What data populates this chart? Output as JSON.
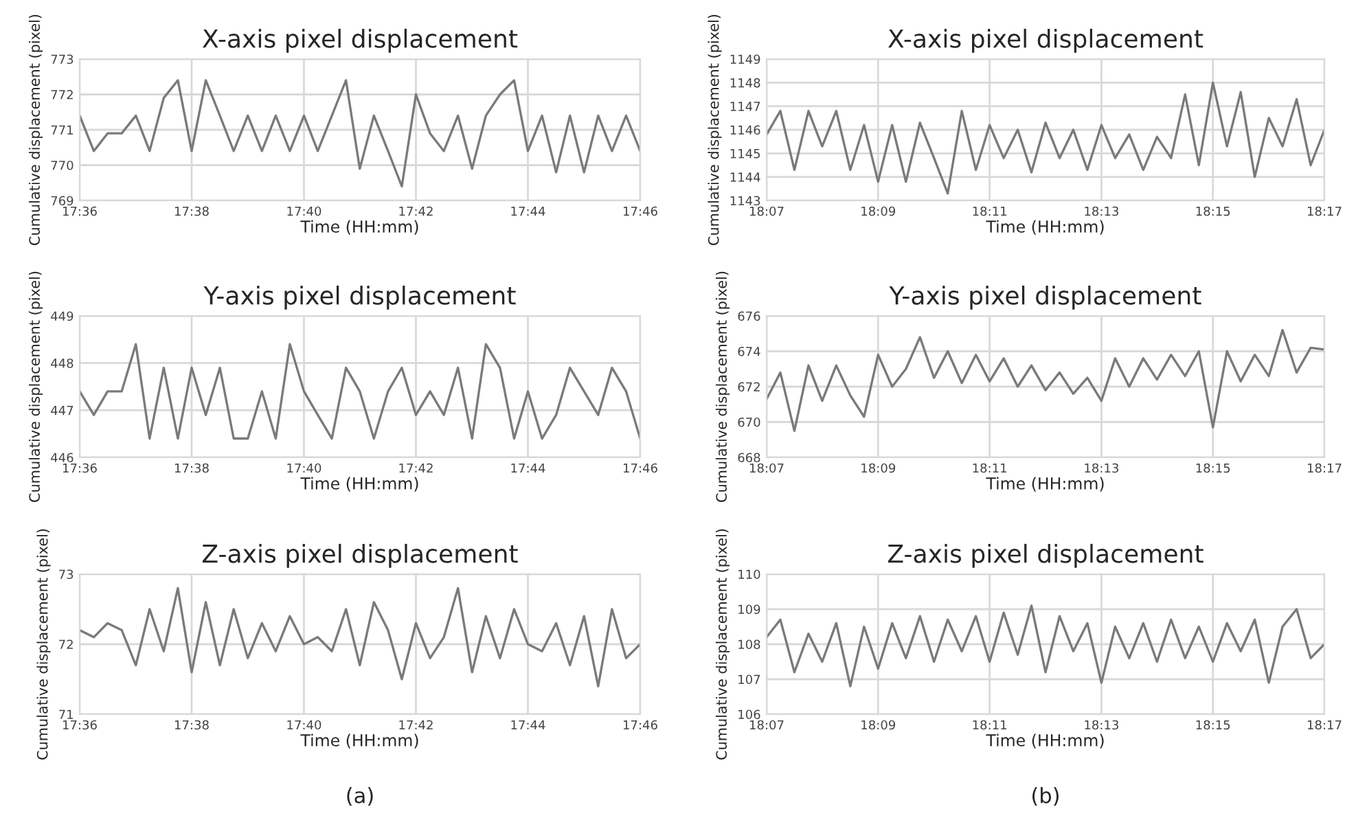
{
  "chart_data": [
    {
      "type": "line",
      "title": "X-axis pixel displacement",
      "xlabel": "Time (HH:mm)",
      "ylabel": "Cumulative displacement (pixel)",
      "grid": true,
      "x": [
        17.6,
        17.6042,
        17.6083,
        17.6125,
        17.6167,
        17.6208,
        17.625,
        17.6292,
        17.6333,
        17.6375,
        17.6417,
        17.6458,
        17.65,
        17.6542,
        17.6583,
        17.6625,
        17.6667,
        17.6708,
        17.675,
        17.6792,
        17.6833,
        17.6875,
        17.6917,
        17.6958,
        17.7,
        17.7042,
        17.7083,
        17.7125,
        17.7167,
        17.7208,
        17.725,
        17.7292,
        17.7333,
        17.7375,
        17.7417,
        17.7458,
        17.75,
        17.7542,
        17.7583,
        17.7625,
        17.7667
      ],
      "xlim": [
        17.6,
        17.7667
      ],
      "xticks": [
        {
          "value": 17.6,
          "label": "17:36"
        },
        {
          "value": 17.6333,
          "label": "17:38"
        },
        {
          "value": 17.6667,
          "label": "17:40"
        },
        {
          "value": 17.7,
          "label": "17:42"
        },
        {
          "value": 17.7333,
          "label": "17:44"
        },
        {
          "value": 17.7667,
          "label": "17:46"
        }
      ],
      "ylim": [
        769,
        773
      ],
      "yticks": [
        769,
        770,
        771,
        772,
        773
      ],
      "series": [
        {
          "color": "#7a7a7a",
          "values": [
            771.4,
            770.4,
            770.9,
            770.9,
            771.4,
            770.4,
            771.9,
            772.4,
            770.4,
            772.4,
            771.4,
            770.4,
            771.4,
            770.4,
            771.4,
            770.4,
            771.4,
            770.4,
            771.4,
            772.4,
            769.9,
            771.4,
            770.4,
            769.4,
            772.0,
            770.9,
            770.4,
            771.4,
            769.9,
            771.4,
            772.0,
            772.4,
            770.4,
            771.4,
            769.8,
            771.4,
            769.8,
            771.4,
            770.4,
            771.4,
            770.4
          ]
        }
      ]
    },
    {
      "type": "line",
      "title": "X-axis pixel displacement",
      "xlabel": "Time (HH:mm)",
      "ylabel": "Cumulative displacement (pixel)",
      "grid": true,
      "x": [
        18.1167,
        18.1208,
        18.125,
        18.1292,
        18.1333,
        18.1375,
        18.1417,
        18.1458,
        18.15,
        18.1542,
        18.1583,
        18.1625,
        18.1667,
        18.1708,
        18.175,
        18.1792,
        18.1833,
        18.1875,
        18.1917,
        18.1958,
        18.2,
        18.2042,
        18.2083,
        18.2125,
        18.2167,
        18.2208,
        18.225,
        18.2292,
        18.2333,
        18.2375,
        18.2417,
        18.2458,
        18.25,
        18.2542,
        18.2583,
        18.2625,
        18.2667,
        18.2708,
        18.275,
        18.2792,
        18.2833
      ],
      "xlim": [
        18.1167,
        18.2833
      ],
      "xticks": [
        {
          "value": 18.1167,
          "label": "18:07"
        },
        {
          "value": 18.15,
          "label": "18:09"
        },
        {
          "value": 18.1833,
          "label": "18:11"
        },
        {
          "value": 18.2167,
          "label": "18:13"
        },
        {
          "value": 18.25,
          "label": "18:15"
        },
        {
          "value": 18.2833,
          "label": "18:17"
        }
      ],
      "ylim": [
        1143,
        1149
      ],
      "yticks": [
        1143,
        1144,
        1145,
        1146,
        1147,
        1148,
        1149
      ],
      "series": [
        {
          "color": "#7a7a7a",
          "values": [
            1145.8,
            1146.8,
            1144.3,
            1146.8,
            1145.3,
            1146.8,
            1144.3,
            1146.2,
            1143.8,
            1146.2,
            1143.8,
            1146.3,
            1144.8,
            1143.3,
            1146.8,
            1144.3,
            1146.2,
            1144.8,
            1146.0,
            1144.2,
            1146.3,
            1144.8,
            1146.0,
            1144.3,
            1146.2,
            1144.8,
            1145.8,
            1144.3,
            1145.7,
            1144.8,
            1147.5,
            1144.5,
            1148.0,
            1145.3,
            1147.6,
            1144.0,
            1146.5,
            1145.3,
            1147.3,
            1144.5,
            1146.0
          ]
        }
      ]
    },
    {
      "type": "line",
      "title": "Y-axis pixel displacement",
      "xlabel": "Time (HH:mm)",
      "ylabel": "Cumulative displacement (pixel)",
      "grid": true,
      "x": [
        17.6,
        17.6042,
        17.6083,
        17.6125,
        17.6167,
        17.6208,
        17.625,
        17.6292,
        17.6333,
        17.6375,
        17.6417,
        17.6458,
        17.65,
        17.6542,
        17.6583,
        17.6625,
        17.6667,
        17.6708,
        17.675,
        17.6792,
        17.6833,
        17.6875,
        17.6917,
        17.6958,
        17.7,
        17.7042,
        17.7083,
        17.7125,
        17.7167,
        17.7208,
        17.725,
        17.7292,
        17.7333,
        17.7375,
        17.7417,
        17.7458,
        17.75,
        17.7542,
        17.7583,
        17.7625,
        17.7667
      ],
      "xlim": [
        17.6,
        17.7667
      ],
      "xticks": [
        {
          "value": 17.6,
          "label": "17:36"
        },
        {
          "value": 17.6333,
          "label": "17:38"
        },
        {
          "value": 17.6667,
          "label": "17:40"
        },
        {
          "value": 17.7,
          "label": "17:42"
        },
        {
          "value": 17.7333,
          "label": "17:44"
        },
        {
          "value": 17.7667,
          "label": "17:46"
        }
      ],
      "ylim": [
        446,
        449
      ],
      "yticks": [
        446,
        447,
        448,
        449
      ],
      "series": [
        {
          "color": "#7a7a7a",
          "values": [
            447.4,
            446.9,
            447.4,
            447.4,
            448.4,
            446.4,
            447.9,
            446.4,
            447.9,
            446.9,
            447.9,
            446.4,
            446.4,
            447.4,
            446.4,
            448.4,
            447.4,
            446.9,
            446.4,
            447.9,
            447.4,
            446.4,
            447.4,
            447.9,
            446.9,
            447.4,
            446.9,
            447.9,
            446.4,
            448.4,
            447.9,
            446.4,
            447.4,
            446.4,
            446.9,
            447.9,
            447.4,
            446.9,
            447.9,
            447.4,
            446.4
          ]
        }
      ]
    },
    {
      "type": "line",
      "title": "Y-axis pixel displacement",
      "xlabel": "Time (HH:mm)",
      "ylabel": "Cumulative displacement (pixel)",
      "grid": true,
      "x": [
        18.1167,
        18.1208,
        18.125,
        18.1292,
        18.1333,
        18.1375,
        18.1417,
        18.1458,
        18.15,
        18.1542,
        18.1583,
        18.1625,
        18.1667,
        18.1708,
        18.175,
        18.1792,
        18.1833,
        18.1875,
        18.1917,
        18.1958,
        18.2,
        18.2042,
        18.2083,
        18.2125,
        18.2167,
        18.2208,
        18.225,
        18.2292,
        18.2333,
        18.2375,
        18.2417,
        18.2458,
        18.25,
        18.2542,
        18.2583,
        18.2625,
        18.2667,
        18.2708,
        18.275,
        18.2792,
        18.2833
      ],
      "xlim": [
        18.1167,
        18.2833
      ],
      "xticks": [
        {
          "value": 18.1167,
          "label": "18:07"
        },
        {
          "value": 18.15,
          "label": "18:09"
        },
        {
          "value": 18.1833,
          "label": "18:11"
        },
        {
          "value": 18.2167,
          "label": "18:13"
        },
        {
          "value": 18.25,
          "label": "18:15"
        },
        {
          "value": 18.2833,
          "label": "18:17"
        }
      ],
      "ylim": [
        668,
        676
      ],
      "yticks": [
        668,
        670,
        672,
        674,
        676
      ],
      "series": [
        {
          "color": "#7a7a7a",
          "values": [
            671.3,
            672.8,
            669.5,
            673.2,
            671.2,
            673.2,
            671.5,
            670.3,
            673.8,
            672.0,
            673.0,
            674.8,
            672.5,
            674.0,
            672.2,
            673.8,
            672.3,
            673.6,
            672.0,
            673.2,
            671.8,
            672.8,
            671.6,
            672.5,
            671.2,
            673.6,
            672.0,
            673.6,
            672.4,
            673.8,
            672.6,
            674.0,
            669.7,
            674.0,
            672.3,
            673.8,
            672.6,
            675.2,
            672.8,
            674.2,
            674.1
          ]
        }
      ]
    },
    {
      "type": "line",
      "title": "Z-axis pixel displacement",
      "xlabel": "Time (HH:mm)",
      "ylabel": "Cumulative displacement (pixel)",
      "grid": true,
      "annotations": [
        "(a)"
      ],
      "x": [
        17.6,
        17.6042,
        17.6083,
        17.6125,
        17.6167,
        17.6208,
        17.625,
        17.6292,
        17.6333,
        17.6375,
        17.6417,
        17.6458,
        17.65,
        17.6542,
        17.6583,
        17.6625,
        17.6667,
        17.6708,
        17.675,
        17.6792,
        17.6833,
        17.6875,
        17.6917,
        17.6958,
        17.7,
        17.7042,
        17.7083,
        17.7125,
        17.7167,
        17.7208,
        17.725,
        17.7292,
        17.7333,
        17.7375,
        17.7417,
        17.7458,
        17.75,
        17.7542,
        17.7583,
        17.7625,
        17.7667
      ],
      "xlim": [
        17.6,
        17.7667
      ],
      "xticks": [
        {
          "value": 17.6,
          "label": "17:36"
        },
        {
          "value": 17.6333,
          "label": "17:38"
        },
        {
          "value": 17.6667,
          "label": "17:40"
        },
        {
          "value": 17.7,
          "label": "17:42"
        },
        {
          "value": 17.7333,
          "label": "17:44"
        },
        {
          "value": 17.7667,
          "label": "17:46"
        }
      ],
      "ylim": [
        71,
        73
      ],
      "yticks": [
        71,
        72,
        73
      ],
      "series": [
        {
          "color": "#7a7a7a",
          "values": [
            72.2,
            72.1,
            72.3,
            72.2,
            71.7,
            72.5,
            71.9,
            72.8,
            71.6,
            72.6,
            71.7,
            72.5,
            71.8,
            72.3,
            71.9,
            72.4,
            72.0,
            72.1,
            71.9,
            72.5,
            71.7,
            72.6,
            72.2,
            71.5,
            72.3,
            71.8,
            72.1,
            72.8,
            71.6,
            72.4,
            71.8,
            72.5,
            72.0,
            71.9,
            72.3,
            71.7,
            72.4,
            71.4,
            72.5,
            71.8,
            72.0
          ]
        }
      ]
    },
    {
      "type": "line",
      "title": "Z-axis pixel displacement",
      "xlabel": "Time (HH:mm)",
      "ylabel": "Cumulative displacement (pixel)",
      "grid": true,
      "annotations": [
        "(b)"
      ],
      "x": [
        18.1167,
        18.1208,
        18.125,
        18.1292,
        18.1333,
        18.1375,
        18.1417,
        18.1458,
        18.15,
        18.1542,
        18.1583,
        18.1625,
        18.1667,
        18.1708,
        18.175,
        18.1792,
        18.1833,
        18.1875,
        18.1917,
        18.1958,
        18.2,
        18.2042,
        18.2083,
        18.2125,
        18.2167,
        18.2208,
        18.225,
        18.2292,
        18.2333,
        18.2375,
        18.2417,
        18.2458,
        18.25,
        18.2542,
        18.2583,
        18.2625,
        18.2667,
        18.2708,
        18.275,
        18.2792,
        18.2833
      ],
      "xlim": [
        18.1167,
        18.2833
      ],
      "xticks": [
        {
          "value": 18.1167,
          "label": "18:07"
        },
        {
          "value": 18.15,
          "label": "18:09"
        },
        {
          "value": 18.1833,
          "label": "18:11"
        },
        {
          "value": 18.2167,
          "label": "18:13"
        },
        {
          "value": 18.25,
          "label": "18:15"
        },
        {
          "value": 18.2833,
          "label": "18:17"
        }
      ],
      "ylim": [
        106,
        110
      ],
      "yticks": [
        106,
        107,
        108,
        109,
        110
      ],
      "series": [
        {
          "color": "#7a7a7a",
          "values": [
            108.2,
            108.7,
            107.2,
            108.3,
            107.5,
            108.6,
            106.8,
            108.5,
            107.3,
            108.6,
            107.6,
            108.8,
            107.5,
            108.7,
            107.8,
            108.8,
            107.5,
            108.9,
            107.7,
            109.1,
            107.2,
            108.8,
            107.8,
            108.6,
            106.9,
            108.5,
            107.6,
            108.6,
            107.5,
            108.7,
            107.6,
            108.5,
            107.5,
            108.6,
            107.8,
            108.7,
            106.9,
            108.5,
            109.0,
            107.6,
            108.0
          ]
        }
      ]
    }
  ]
}
